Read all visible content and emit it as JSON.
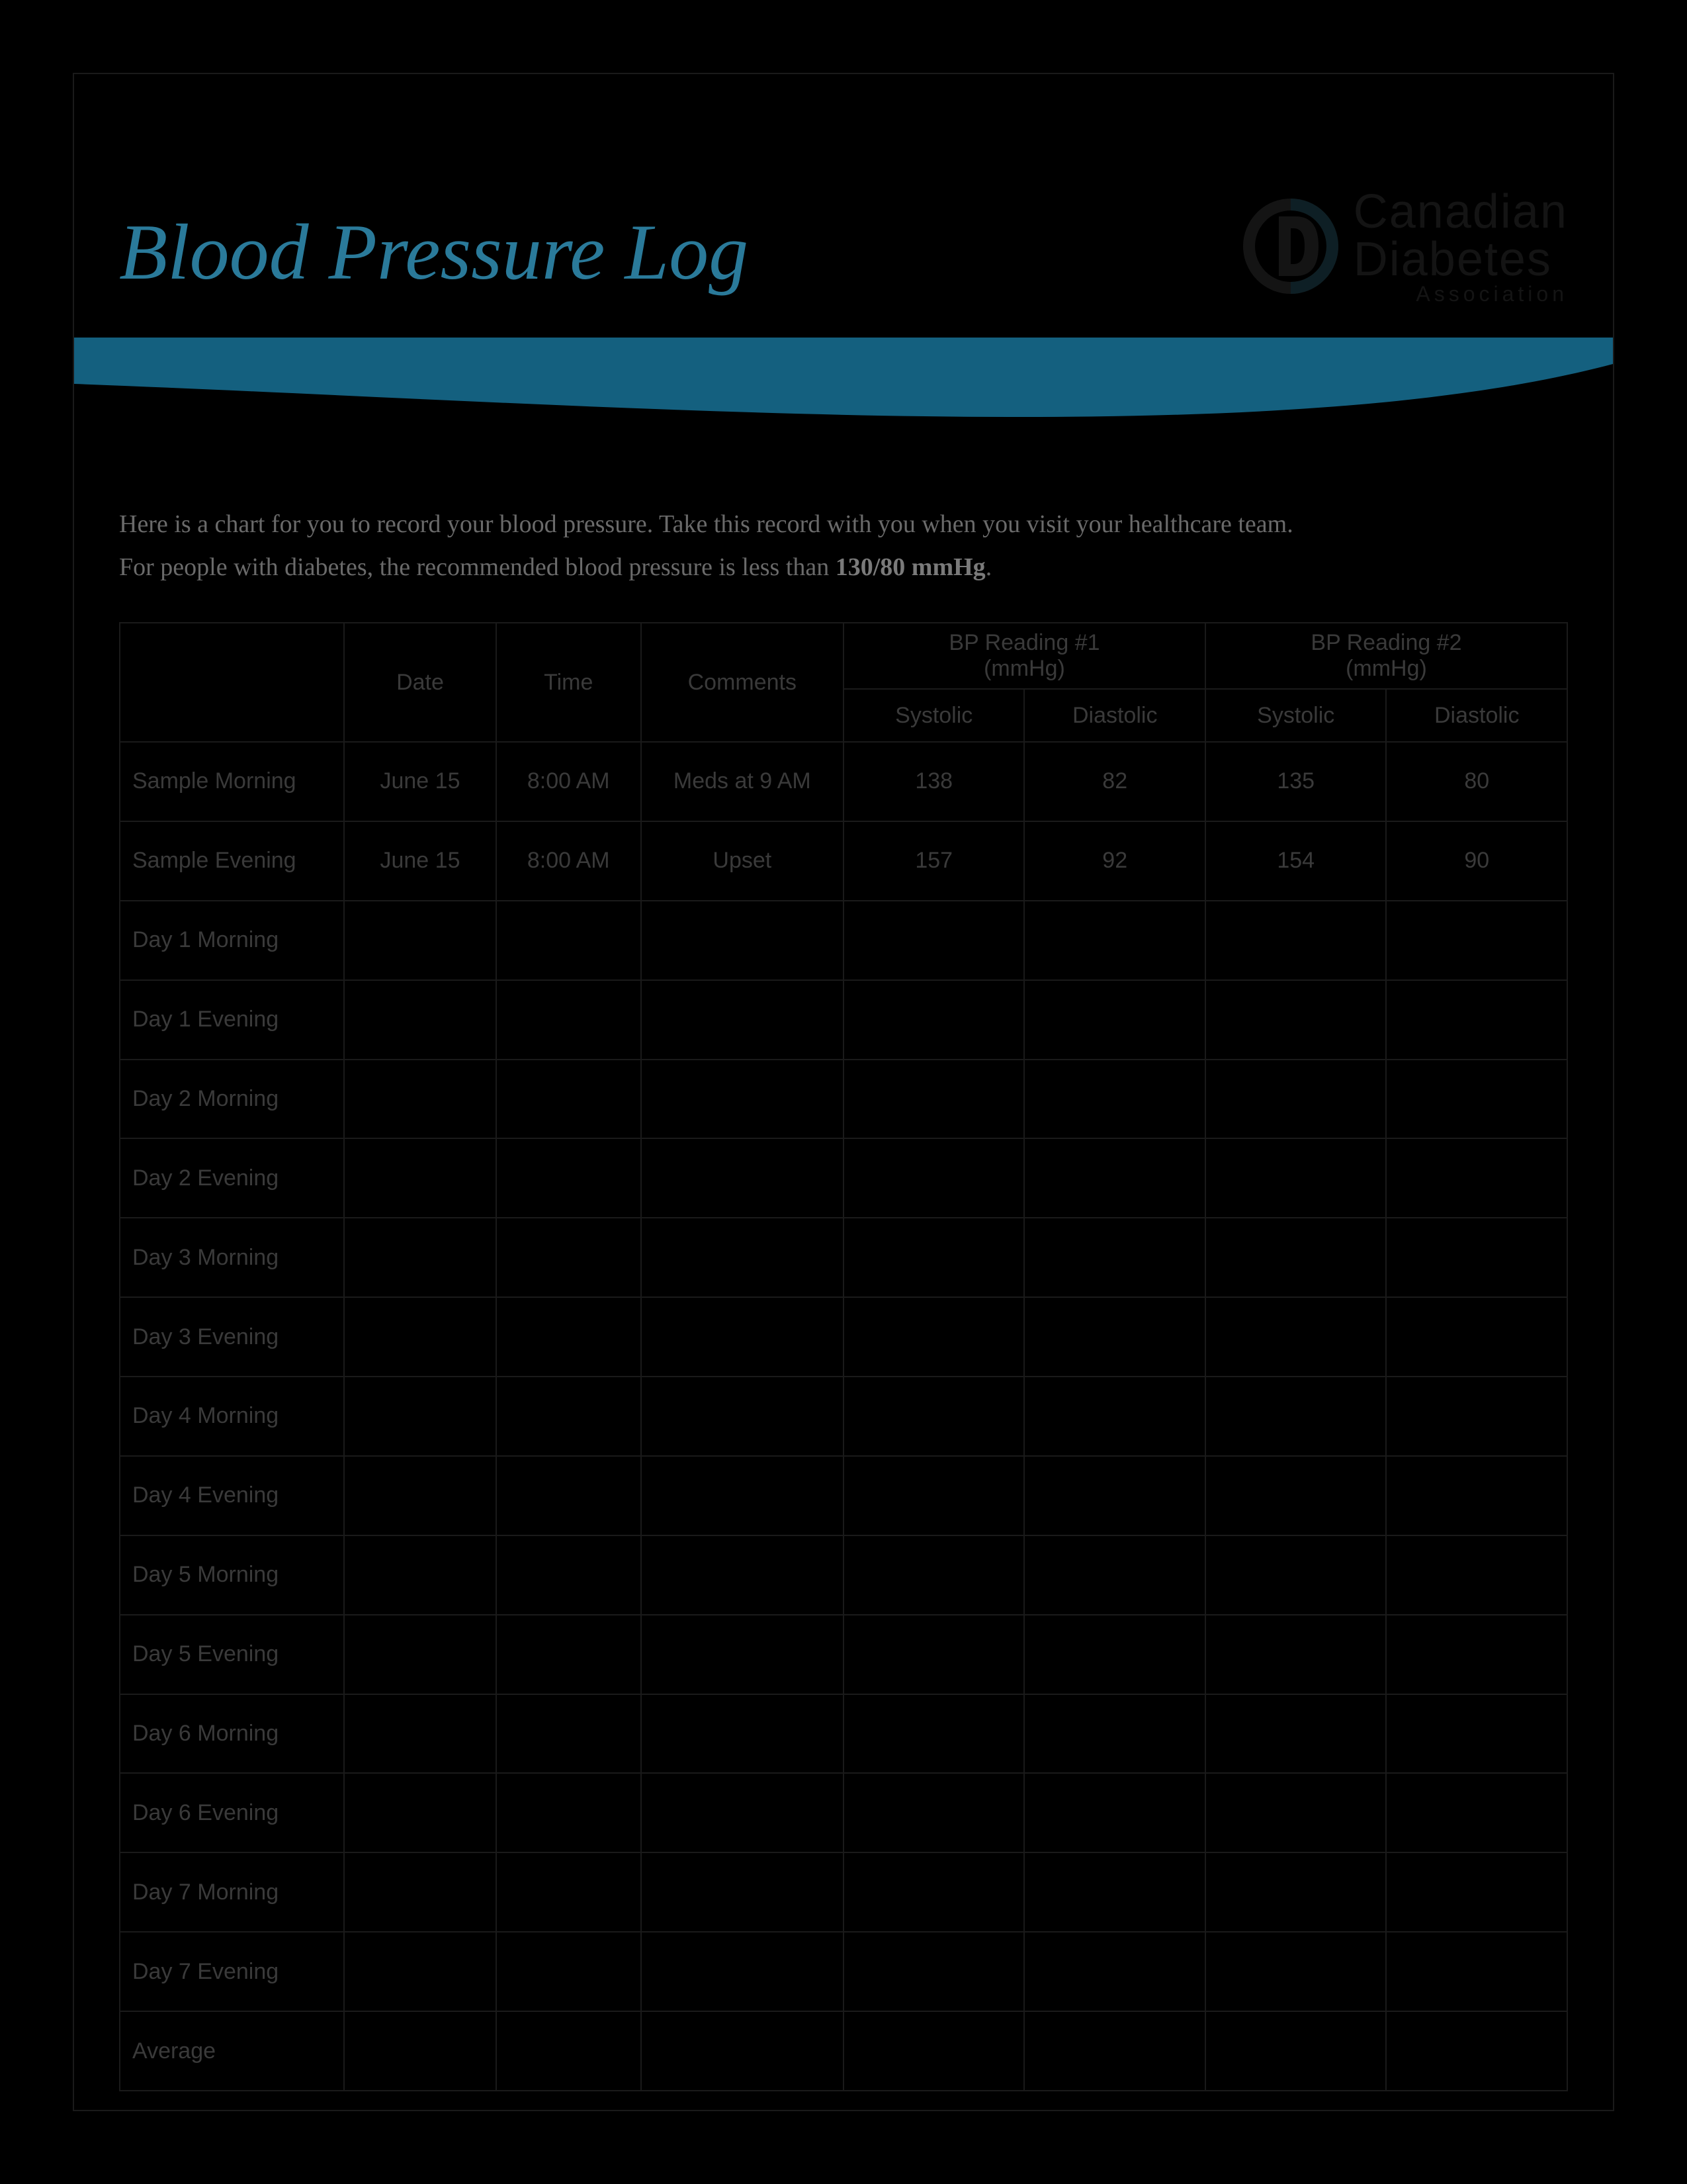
{
  "colors": {
    "page_bg": "#000000",
    "title": "#2a7a9a",
    "swoosh": "#14607f",
    "border": "#1a1a1a",
    "text_dim": "#3a3a3a",
    "intro_text": "#6a6a6a"
  },
  "title": "Blood Pressure Log",
  "logo": {
    "line1": "Canadian",
    "line2": "Diabetes",
    "line3": "Association"
  },
  "intro": {
    "line1": "Here is a chart for you to record your blood pressure. Take this record with you when you visit your healthcare team.",
    "line2_pre": "For people with diabetes, the recommended blood pressure is less than ",
    "line2_bold": "130/80 mmHg",
    "line2_post": "."
  },
  "table": {
    "headers": {
      "date": "Date",
      "time": "Time",
      "comments": "Comments",
      "bp1": "BP Reading #1\n(mmHg)",
      "bp2": "BP Reading #2\n(mmHg)",
      "systolic": "Systolic",
      "diastolic": "Diastolic"
    },
    "rows": [
      {
        "label": "Sample Morning",
        "date": "June 15",
        "time": "8:00 AM",
        "comments": "Meds at 9 AM",
        "s1": "138",
        "d1": "82",
        "s2": "135",
        "d2": "80"
      },
      {
        "label": "Sample Evening",
        "date": "June 15",
        "time": "8:00 AM",
        "comments": "Upset",
        "s1": "157",
        "d1": "92",
        "s2": "154",
        "d2": "90"
      },
      {
        "label": "Day 1 Morning",
        "date": "",
        "time": "",
        "comments": "",
        "s1": "",
        "d1": "",
        "s2": "",
        "d2": ""
      },
      {
        "label": "Day 1 Evening",
        "date": "",
        "time": "",
        "comments": "",
        "s1": "",
        "d1": "",
        "s2": "",
        "d2": ""
      },
      {
        "label": "Day 2 Morning",
        "date": "",
        "time": "",
        "comments": "",
        "s1": "",
        "d1": "",
        "s2": "",
        "d2": ""
      },
      {
        "label": "Day 2 Evening",
        "date": "",
        "time": "",
        "comments": "",
        "s1": "",
        "d1": "",
        "s2": "",
        "d2": ""
      },
      {
        "label": "Day 3 Morning",
        "date": "",
        "time": "",
        "comments": "",
        "s1": "",
        "d1": "",
        "s2": "",
        "d2": ""
      },
      {
        "label": "Day 3 Evening",
        "date": "",
        "time": "",
        "comments": "",
        "s1": "",
        "d1": "",
        "s2": "",
        "d2": ""
      },
      {
        "label": "Day 4 Morning",
        "date": "",
        "time": "",
        "comments": "",
        "s1": "",
        "d1": "",
        "s2": "",
        "d2": ""
      },
      {
        "label": "Day 4 Evening",
        "date": "",
        "time": "",
        "comments": "",
        "s1": "",
        "d1": "",
        "s2": "",
        "d2": ""
      },
      {
        "label": "Day 5 Morning",
        "date": "",
        "time": "",
        "comments": "",
        "s1": "",
        "d1": "",
        "s2": "",
        "d2": ""
      },
      {
        "label": "Day 5 Evening",
        "date": "",
        "time": "",
        "comments": "",
        "s1": "",
        "d1": "",
        "s2": "",
        "d2": ""
      },
      {
        "label": "Day 6 Morning",
        "date": "",
        "time": "",
        "comments": "",
        "s1": "",
        "d1": "",
        "s2": "",
        "d2": ""
      },
      {
        "label": "Day 6 Evening",
        "date": "",
        "time": "",
        "comments": "",
        "s1": "",
        "d1": "",
        "s2": "",
        "d2": ""
      },
      {
        "label": "Day 7 Morning",
        "date": "",
        "time": "",
        "comments": "",
        "s1": "",
        "d1": "",
        "s2": "",
        "d2": ""
      },
      {
        "label": "Day 7 Evening",
        "date": "",
        "time": "",
        "comments": "",
        "s1": "",
        "d1": "",
        "s2": "",
        "d2": ""
      },
      {
        "label": "Average",
        "date": "",
        "time": "",
        "comments": "",
        "s1": "",
        "d1": "",
        "s2": "",
        "d2": ""
      }
    ]
  }
}
